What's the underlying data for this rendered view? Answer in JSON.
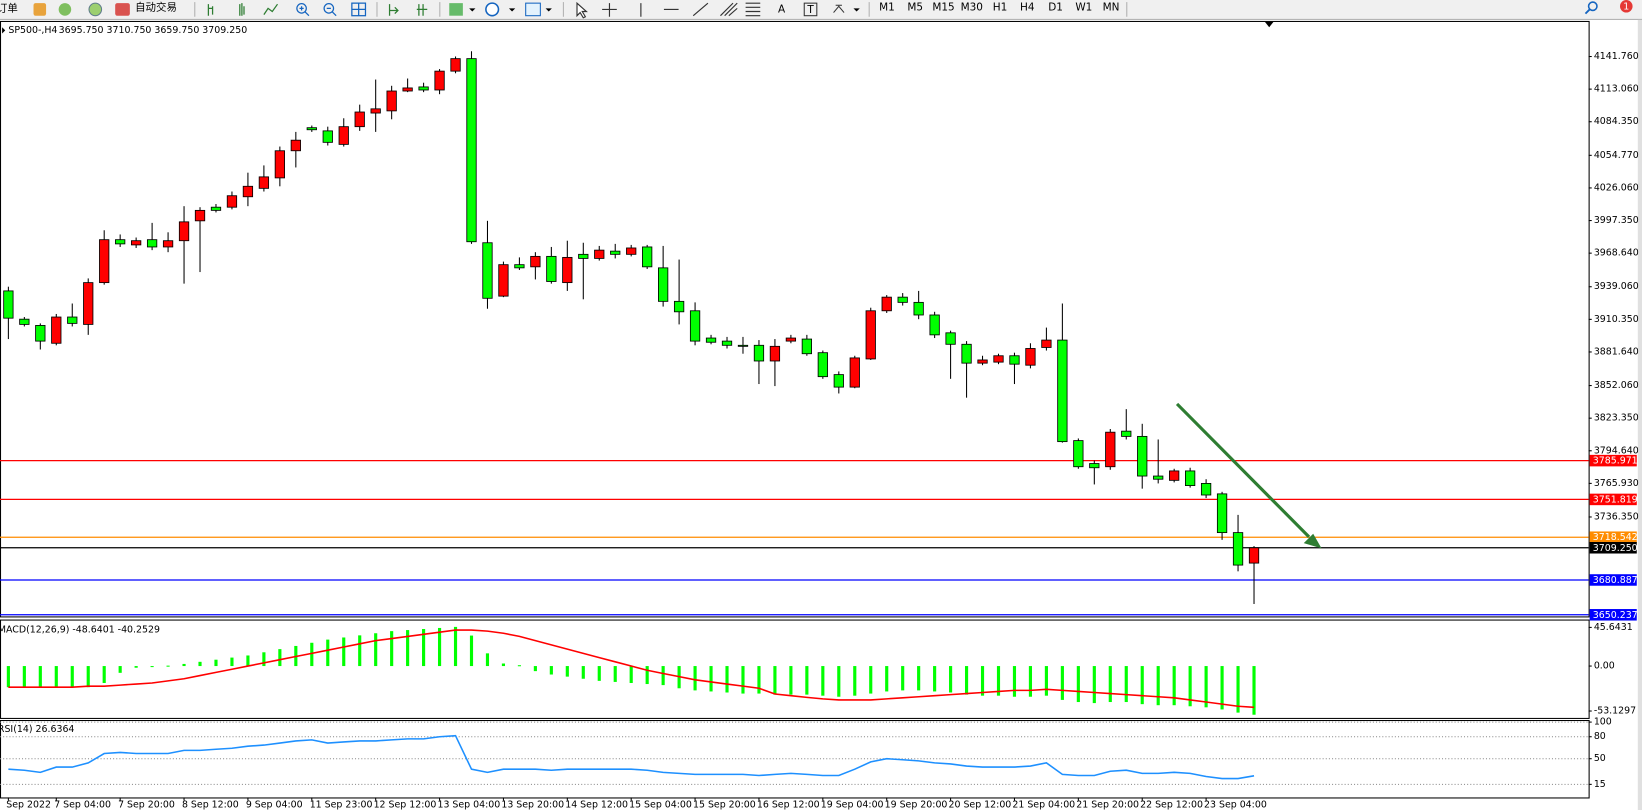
{
  "toolbar": {
    "order": "订单",
    "autotrade": "自动交易",
    "timeframes": [
      "M1",
      "M5",
      "M15",
      "M30",
      "H1",
      "H4",
      "D1",
      "W1",
      "MN"
    ],
    "notifications": 1
  },
  "chart_data": [
    {
      "type": "candlestick",
      "title": "SP500-,H4",
      "subtitle": "3695.750 3710.750 3659.750 3709.250",
      "categories": [
        "Sep 2022",
        null,
        null,
        "7 Sep 04:00",
        null,
        null,
        null,
        "7 Sep 20:00",
        null,
        null,
        null,
        "8 Sep 12:00",
        null,
        null,
        null,
        "9 Sep 04:00",
        null,
        null,
        null,
        "11 Sep 23:00",
        null,
        null,
        null,
        "12 Sep 12:00",
        null,
        null,
        null,
        "13 Sep 04:00",
        null,
        null,
        null,
        "13 Sep 20:00",
        null,
        null,
        null,
        "14 Sep 12:00",
        null,
        null,
        null,
        "15 Sep 04:00",
        null,
        null,
        null,
        "15 Sep 20:00",
        null,
        null,
        null,
        "16 Sep 12:00",
        null,
        null,
        null,
        "19 Sep 04:00",
        null,
        null,
        null,
        "19 Sep 20:00",
        null,
        null,
        null,
        "20 Sep 12:00",
        null,
        null,
        null,
        "21 Sep 04:00",
        null,
        null,
        null,
        "21 Sep 20:00",
        null,
        null,
        null,
        "22 Sep 12:00",
        null,
        null,
        null,
        "23 Sep 04:00",
        null,
        null,
        null
      ],
      "open": [
        3935.4,
        3910.5,
        3905.0,
        3889.3,
        3912.4,
        3905.9,
        3942.7,
        3980.5,
        3975.9,
        3980.5,
        3974.1,
        3979.6,
        3997.1,
        4009.1,
        4009.1,
        4018.3,
        4025.7,
        4034.9,
        4058.8,
        4079.1,
        4076.3,
        4064.4,
        4080.0,
        4092.0,
        4093.9,
        4111.4,
        4115.0,
        4112.3,
        4128.9,
        4139.9,
        3977.8,
        3930.8,
        3958.5,
        3956.6,
        3965.8,
        3942.7,
        3967.6,
        3964.0,
        3970.4,
        3967.6,
        3974.1,
        3955.7,
        3926.2,
        3917.9,
        3893.9,
        3891.2,
        3887.5,
        3887.5,
        3873.7,
        3891.2,
        3893.0,
        3881.0,
        3861.7,
        3850.7,
        3875.5,
        3917.9,
        3929.9,
        3925.3,
        3914.2,
        3898.5,
        3888.4,
        3871.8,
        3872.7,
        3878.3,
        3870.0,
        3885.6,
        3892.1,
        3803.6,
        3783.4,
        3780.6,
        3811.9,
        3807.3,
        3772.4,
        3768.6,
        3776.9,
        3765.9,
        3756.7,
        3722.6,
        3695.75
      ],
      "high": [
        3939.1,
        3912.4,
        3906.8,
        3915.1,
        3924.3,
        3946.4,
        3988.8,
        3985.1,
        3982.4,
        3995.3,
        3987.0,
        4010.0,
        4009.1,
        4011.9,
        4022.9,
        4039.5,
        4045.9,
        4062.5,
        4075.4,
        4081.0,
        4080.0,
        4087.4,
        4099.4,
        4121.5,
        4116.0,
        4122.4,
        4118.7,
        4130.7,
        4141.8,
        4146.4,
        3997.1,
        3961.2,
        3964.9,
        3969.5,
        3974.1,
        3979.6,
        3977.8,
        3975.0,
        3976.8,
        3975.9,
        3975.9,
        3975.0,
        3963.0,
        3925.3,
        3896.7,
        3894.9,
        3894.9,
        3892.1,
        3893.0,
        3896.7,
        3896.7,
        3882.9,
        3864.5,
        3878.3,
        3920.6,
        3931.7,
        3933.5,
        3935.4,
        3917.0,
        3900.4,
        3891.2,
        3878.3,
        3880.1,
        3881.0,
        3889.3,
        3903.1,
        3924.3,
        3805.5,
        3786.1,
        3813.8,
        3831.3,
        3818.4,
        3804.6,
        3778.8,
        3779.7,
        3769.6,
        3758.5,
        3738.2,
        3710.75
      ],
      "low": [
        3893.0,
        3904.1,
        3883.8,
        3887.5,
        3904.1,
        3896.7,
        3940.9,
        3974.1,
        3973.2,
        3971.3,
        3969.5,
        3941.8,
        3952.0,
        4004.5,
        4007.2,
        4010.0,
        4022.9,
        4027.5,
        4044.1,
        4075.4,
        4063.4,
        4062.5,
        4076.3,
        4075.4,
        4086.5,
        4110.4,
        4110.4,
        4108.6,
        4127.0,
        3976.8,
        3919.7,
        3929.9,
        3953.8,
        3945.5,
        3941.8,
        3935.4,
        3928.0,
        3962.1,
        3964.0,
        3965.8,
        3954.7,
        3921.6,
        3905.9,
        3887.5,
        3888.4,
        3884.7,
        3880.1,
        3853.4,
        3851.6,
        3889.3,
        3878.3,
        3858.0,
        3845.1,
        3849.7,
        3874.6,
        3916.0,
        3922.5,
        3910.5,
        3893.9,
        3858.0,
        3841.4,
        3870.0,
        3870.9,
        3853.4,
        3867.2,
        3882.9,
        3801.8,
        3778.8,
        3765.0,
        3777.9,
        3804.6,
        3761.3,
        3765.9,
        3766.8,
        3762.2,
        3753.0,
        3716.2,
        3688.5,
        3659.75
      ],
      "close": [
        3911.4,
        3905.9,
        3891.2,
        3912.4,
        3906.8,
        3942.7,
        3980.5,
        3976.8,
        3979.6,
        3974.1,
        3979.6,
        3996.2,
        4006.3,
        4006.3,
        4019.2,
        4027.5,
        4035.8,
        4058.8,
        4068.1,
        4077.3,
        4066.2,
        4080.0,
        4092.9,
        4095.7,
        4111.4,
        4114.1,
        4112.3,
        4128.9,
        4139.9,
        3978.7,
        3928.9,
        3958.5,
        3955.7,
        3965.8,
        3943.7,
        3964.9,
        3964.0,
        3971.3,
        3967.6,
        3973.2,
        3956.6,
        3926.2,
        3917.0,
        3891.2,
        3890.2,
        3887.5,
        3886.6,
        3873.7,
        3886.6,
        3893.9,
        3880.1,
        3859.9,
        3850.7,
        3876.4,
        3917.9,
        3929.9,
        3925.3,
        3914.2,
        3896.7,
        3888.4,
        3871.8,
        3874.6,
        3878.3,
        3870.9,
        3884.7,
        3892.1,
        3802.7,
        3780.6,
        3779.7,
        3811.0,
        3807.3,
        3772.4,
        3769.6,
        3776.9,
        3764.0,
        3755.7,
        3722.6,
        3694.0,
        3709.25
      ],
      "up_color": "#ff0000",
      "down_color": "#00ff00",
      "ylim": [
        3647.9,
        4173.1
      ],
      "yticks": [
        {
          "value": 4141.76,
          "label": "4141.760"
        },
        {
          "value": 4113.06,
          "label": "4113.060"
        },
        {
          "value": 4084.35,
          "label": "4084.350"
        },
        {
          "value": 4054.77,
          "label": "4054.770"
        },
        {
          "value": 4026.06,
          "label": "4026.060"
        },
        {
          "value": 3997.35,
          "label": "3997.350"
        },
        {
          "value": 3968.64,
          "label": "3968.640"
        },
        {
          "value": 3939.06,
          "label": "3939.060"
        },
        {
          "value": 3910.35,
          "label": "3910.350"
        },
        {
          "value": 3881.64,
          "label": "3881.640"
        },
        {
          "value": 3852.06,
          "label": "3852.060"
        },
        {
          "value": 3823.35,
          "label": "3823.350"
        },
        {
          "value": 3794.64,
          "label": "3794.640"
        },
        {
          "value": 3765.93,
          "label": "3765.930"
        },
        {
          "value": 3736.35,
          "label": "3736.350"
        }
      ],
      "lines": [
        {
          "value": 3785.971,
          "label": "3785.971",
          "color": "#ff0000"
        },
        {
          "value": 3751.819,
          "label": "3751.819",
          "color": "#ff0000"
        },
        {
          "value": 3718.542,
          "label": "3718.542",
          "color": "#ff8c00"
        },
        {
          "value": 3709.25,
          "label": "3709.250",
          "color": "#000000"
        },
        {
          "value": 3680.887,
          "label": "3680.887",
          "color": "#0000ff"
        },
        {
          "value": 3650.237,
          "label": "3650.237",
          "color": "#0000ff"
        }
      ],
      "grid": false
    },
    {
      "type": "macd",
      "title": "MACD(12,26,9) -48.6401 -40.2529",
      "histogram": {
        "color": "#00ff00",
        "values": [
          -25,
          -25,
          -25,
          -25,
          -25,
          -25,
          -20,
          -8,
          -2,
          -1,
          0.5,
          2.5,
          5,
          7.5,
          10,
          12.5,
          16.25,
          20,
          23.75,
          27.5,
          31.25,
          33.75,
          36.25,
          38.75,
          41.25,
          42.5,
          43.75,
          45,
          46.25,
          36,
          15,
          3,
          1,
          -6,
          -10,
          -12.5,
          -15,
          -17.5,
          -18.75,
          -20,
          -21.25,
          -22.5,
          -26.25,
          -28.75,
          -30,
          -31.25,
          -32.5,
          -32.5,
          -33.75,
          -33.75,
          -33.75,
          -35,
          -36.25,
          -35,
          -32.5,
          -30,
          -28.75,
          -28.75,
          -30,
          -31.25,
          -33.75,
          -35,
          -35,
          -36.25,
          -36.25,
          -35,
          -40,
          -42.5,
          -43.75,
          -42.5,
          -42.5,
          -45,
          -46.25,
          -46.25,
          -47.5,
          -48.75,
          -51.25,
          -55,
          -57.5
        ]
      },
      "signal": {
        "color": "#ff0000",
        "values": [
          -25,
          -25,
          -25,
          -25,
          -25,
          -23.75,
          -23.75,
          -22.5,
          -21.25,
          -20,
          -17.5,
          -15,
          -11.25,
          -7.5,
          -3.75,
          0,
          3.75,
          7.5,
          11.25,
          15,
          18.75,
          22.5,
          26.25,
          30,
          32.5,
          35,
          37.5,
          40,
          42.5,
          42.5,
          41.25,
          38.75,
          35,
          30,
          25,
          20,
          15,
          10,
          5,
          0,
          -5,
          -8.75,
          -12.5,
          -16.25,
          -18.75,
          -21.25,
          -23.75,
          -26.25,
          -33,
          -35,
          -37,
          -38.75,
          -40,
          -40,
          -40,
          -38.75,
          -37.5,
          -36.25,
          -35,
          -33.75,
          -32.5,
          -31.25,
          -30,
          -28.75,
          -28.75,
          -27.5,
          -28.75,
          -30,
          -31.25,
          -32.5,
          -33.75,
          -35,
          -36.25,
          -37.5,
          -40,
          -42.5,
          -45,
          -47.5,
          -48.75
        ]
      },
      "ylim": [
        -61.25,
        50
      ],
      "yticks": [
        45.6431,
        {
          "value": 0,
          "label": "0.00"
        },
        -53.1297
      ]
    },
    {
      "type": "line",
      "title": "RSI(14) 26.6364",
      "color": "#1e90ff",
      "values": [
        35.7,
        34.3,
        31.4,
        38.6,
        38.6,
        44.3,
        57.1,
        58.6,
        57.1,
        57.1,
        57.1,
        61.4,
        61.4,
        62.9,
        64.3,
        67.1,
        68.6,
        71.4,
        74.3,
        75.7,
        71.4,
        72.9,
        74.3,
        74.3,
        75.7,
        77.1,
        77.1,
        80,
        81.4,
        35.7,
        31.4,
        35.7,
        35.7,
        35.7,
        34.3,
        35.7,
        35.7,
        35.7,
        35.7,
        35.7,
        34.3,
        31.4,
        30,
        28.6,
        28.6,
        28.6,
        28.6,
        27.1,
        28.6,
        30,
        28.6,
        27.1,
        27.1,
        35.7,
        45.7,
        50,
        48.6,
        47.1,
        44.3,
        42.9,
        40,
        38.6,
        38.6,
        38.6,
        40,
        44.3,
        28.6,
        27.1,
        27.1,
        32.9,
        34.3,
        30,
        30,
        31.4,
        30,
        25.7,
        22.9,
        22.9,
        26.6364
      ],
      "ylim": [
        0,
        100
      ],
      "yticks": [
        100,
        80,
        50,
        15
      ],
      "grid": "dotted"
    }
  ]
}
